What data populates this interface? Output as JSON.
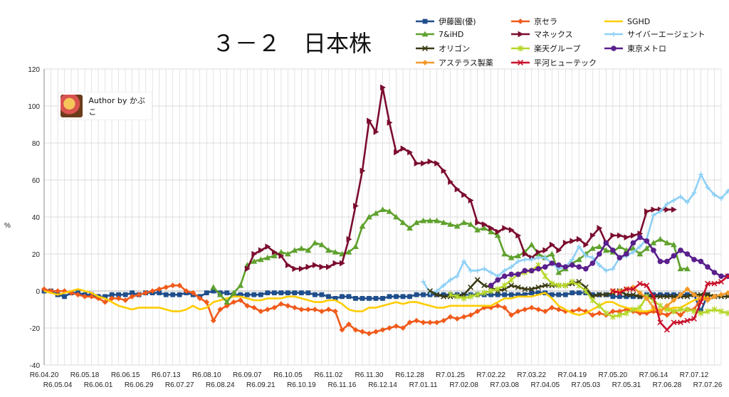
{
  "chart_data": {
    "type": "line",
    "title": "３－２　日本株",
    "ylabel": "%",
    "ylim": [
      -40,
      120
    ],
    "yticks": [
      -40,
      -20,
      0,
      20,
      40,
      60,
      80,
      100,
      120
    ],
    "grid": true,
    "legend_position": "top-right",
    "xticks_top": [
      "R6.04.20",
      "R6.05.18",
      "R6.06.15",
      "R6.07.13",
      "R6.08.10",
      "R6.09.07",
      "R6.10.05",
      "R6.11.02",
      "R6.11.30",
      "R6.12.28",
      "R7.01.25",
      "R7.02.22",
      "R7.03.22",
      "R7.04.19",
      "R7.05.20",
      "R7.06.14",
      "R7.07.12"
    ],
    "xticks_bottom": [
      "R6.05.04",
      "R6.06.01",
      "R6.06.29",
      "R6.07.27",
      "R6.08.24",
      "R6.09.21",
      "R6.10.19",
      "R6.11.16",
      "R6.12.14",
      "R7.01.11",
      "R7.02.08",
      "R7.03.08",
      "R7.04.05",
      "R7.05.03",
      "R7.05.31",
      "R7.06.28",
      "R7.07.26"
    ],
    "series": [
      {
        "name": "伊藤園(優)",
        "color": "#1f4e8c",
        "marker": "square",
        "start": 0,
        "values": [
          0,
          0,
          -2,
          -3,
          -1,
          -1,
          -2,
          -2,
          -3,
          -3,
          -2,
          -2,
          -2,
          -1,
          -2,
          -1,
          -1,
          -1,
          -2,
          -2,
          -2,
          -1,
          -2,
          -3,
          -1,
          0,
          -1,
          -1,
          -2,
          -2,
          -2,
          -2,
          -2,
          -1,
          -1,
          -1,
          -1,
          -1,
          -1,
          -1,
          -2,
          -2,
          -3,
          -4,
          -3,
          -3,
          -4,
          -4,
          -4,
          -4,
          -4,
          -3,
          -3,
          -3,
          -3,
          -2,
          -2,
          -2,
          -2,
          -2,
          -2,
          -2,
          -2,
          -2,
          -2,
          -2,
          -2,
          -2,
          -2,
          -2,
          -2,
          -2,
          -1,
          -1,
          -1,
          -2,
          -2,
          -2,
          -1,
          -1,
          -1,
          -2,
          -2,
          -2,
          -3,
          -3,
          -3,
          -3,
          -3,
          -2,
          -2,
          -2,
          -2,
          -2,
          -2,
          -2,
          -2,
          -11,
          -2
        ]
      },
      {
        "name": "京セラ",
        "color": "#f05a1a",
        "marker": "diamond",
        "start": 0,
        "values": [
          1,
          0,
          0,
          0,
          -1,
          -2,
          -3,
          -3,
          -4,
          -6,
          -4,
          -4,
          -5,
          -3,
          -2,
          -1,
          0,
          1,
          2,
          3,
          3,
          0,
          -1,
          -4,
          -6,
          -16,
          -10,
          -8,
          -6,
          -5,
          -8,
          -9,
          -11,
          -10,
          -9,
          -7,
          -8,
          -9,
          -10,
          -10,
          -10,
          -11,
          -10,
          -11,
          -21,
          -18,
          -21,
          -22,
          -23,
          -22,
          -21,
          -20,
          -19,
          -20,
          -17,
          -16,
          -17,
          -17,
          -17,
          -16,
          -14,
          -15,
          -14,
          -13,
          -11,
          -9,
          -9,
          -8,
          -9,
          -13,
          -11,
          -10,
          -9,
          -10,
          -11,
          -9,
          -10,
          -11,
          -11,
          -10,
          -11,
          -13,
          -12,
          -13,
          -11,
          -11,
          -10,
          -11,
          -12,
          -12,
          -11,
          -12,
          -13,
          -11,
          -13,
          -10,
          -10,
          -4,
          -4
        ]
      },
      {
        "name": "SGHD",
        "color": "#ffcc00",
        "marker": "none",
        "start": 0,
        "values": [
          0,
          -1,
          -2,
          -1,
          0,
          1,
          0,
          -1,
          -3,
          -4,
          -6,
          -8,
          -9,
          -10,
          -9,
          -9,
          -9,
          -9,
          -10,
          -11,
          -11,
          -10,
          -8,
          -10,
          -9,
          -6,
          -5,
          -4,
          -3,
          -3,
          -4,
          -5,
          -5,
          -4,
          -4,
          -4,
          -3,
          -3,
          -4,
          -5,
          -6,
          -6,
          -5,
          -5,
          -7,
          -10,
          -11,
          -11,
          -9,
          -9,
          -8,
          -7,
          -6,
          -7,
          -6,
          -6,
          -7,
          -8,
          -9,
          -9,
          -8,
          -8,
          -8,
          -8,
          -8,
          -8,
          -8,
          -6,
          -4,
          -4,
          -3,
          -3,
          -3,
          -2,
          -1,
          -4,
          -8,
          -10,
          -12,
          -13,
          -12,
          -10,
          -8,
          -6,
          -6,
          -8,
          -9,
          -10,
          -11,
          -11,
          -10,
          -10,
          -10,
          -9,
          -9,
          -7,
          -5,
          -4,
          -3,
          -2
        ]
      },
      {
        "name": "7&iHD",
        "color": "#5fa12e",
        "marker": "triangle",
        "start": 25,
        "values": [
          2,
          -2,
          -6,
          -1,
          3,
          14,
          16,
          17,
          18,
          19,
          21,
          20,
          22,
          23,
          22,
          26,
          25,
          22,
          21,
          20,
          21,
          24,
          35,
          40,
          42,
          44,
          43,
          40,
          37,
          34,
          37,
          38,
          38,
          38,
          37,
          36,
          35,
          37,
          36,
          33,
          34,
          32,
          30,
          20,
          18,
          19,
          21,
          25,
          20,
          18,
          20,
          10,
          12,
          15,
          17,
          20,
          23,
          24,
          22,
          21,
          24,
          22,
          23,
          20,
          23,
          26,
          28,
          26,
          25,
          12,
          12
        ]
      },
      {
        "name": "マネックス",
        "color": "#7b0c2e",
        "marker": "triangle-right",
        "start": 30,
        "values": [
          12,
          20,
          22,
          24,
          21,
          19,
          14,
          12,
          12,
          13,
          14,
          13,
          13,
          15,
          15,
          28,
          46,
          65,
          92,
          86,
          110,
          91,
          75,
          77,
          75,
          69,
          69,
          70,
          69,
          65,
          59,
          55,
          52,
          49,
          37,
          36,
          34,
          32,
          34,
          33,
          30,
          20,
          18,
          21,
          22,
          25,
          22,
          26,
          27,
          28,
          25,
          30,
          34,
          26,
          30,
          30,
          29,
          30,
          31,
          43,
          44,
          44,
          44,
          44
        ]
      },
      {
        "name": "サイバーエージェント",
        "color": "#8fd0f5",
        "marker": "plus",
        "start": 56,
        "values": [
          5,
          -1,
          0,
          3,
          6,
          8,
          16,
          11,
          11,
          12,
          10,
          8,
          11,
          13,
          16,
          17,
          17,
          18,
          18,
          15,
          12,
          13,
          17,
          24,
          19,
          18,
          14,
          11,
          12,
          18,
          19,
          21,
          24,
          28,
          41,
          43,
          47,
          49,
          51,
          48,
          53,
          63,
          56,
          52,
          50,
          54,
          57,
          58,
          57,
          57
        ]
      },
      {
        "name": "オリゴン",
        "color": "#3a3a14",
        "marker": "x",
        "start": 57,
        "values": [
          0,
          -2,
          -3,
          -3,
          -3,
          -2,
          2,
          6,
          3,
          2,
          0,
          1,
          3,
          2,
          1,
          1,
          2,
          3,
          3,
          3,
          3,
          4,
          5,
          2,
          -3,
          -2,
          -2,
          -1,
          0,
          -2,
          -2,
          -3,
          -3,
          -3,
          -3,
          -3,
          -3,
          -3,
          -3,
          -2,
          -2,
          -2,
          -3,
          -3,
          -3,
          -3,
          -3,
          -3,
          -3
        ]
      },
      {
        "name": "楽天グループ",
        "color": "#b6d72a",
        "marker": "asterisk",
        "start": 60,
        "values": [
          -2,
          -3,
          -4,
          -3,
          -2,
          -1,
          0,
          1,
          3,
          6,
          9,
          10,
          11,
          14,
          8,
          4,
          3,
          3,
          5,
          3,
          0,
          -5,
          -8,
          -12,
          -14,
          -13,
          -12,
          -10,
          -9,
          -3,
          -5,
          -8,
          -10,
          -11,
          -10,
          -10,
          -11,
          -12,
          -11,
          -10,
          -11,
          -12,
          -13,
          -12,
          -12,
          -12,
          -12
        ]
      },
      {
        "name": "東京メトロ",
        "color": "#5a1f8c",
        "marker": "circle",
        "start": 66,
        "values": [
          3,
          6,
          8,
          9,
          9,
          11,
          11,
          12,
          13,
          15,
          14,
          13,
          14,
          13,
          12,
          15,
          20,
          26,
          22,
          18,
          20,
          26,
          29,
          27,
          22,
          16,
          16,
          19,
          22,
          20,
          17,
          16,
          13,
          10,
          8,
          8,
          8,
          8,
          7,
          6,
          5,
          4,
          4,
          5,
          7
        ]
      },
      {
        "name": "アステラス製薬",
        "color": "#f39a2a",
        "marker": "diamond",
        "start": 84,
        "values": [
          0,
          0,
          1,
          2,
          -1,
          -4,
          -9,
          -11,
          -8,
          -5,
          -2,
          1,
          -2,
          -4,
          -5,
          -3,
          -2,
          -1,
          0,
          -2,
          -3,
          -1,
          0,
          0,
          -2,
          -3,
          -4,
          -2,
          2,
          4
        ]
      },
      {
        "name": "平河ヒューテック",
        "color": "#c9102a",
        "marker": "x",
        "start": 84,
        "values": [
          0,
          -1,
          1,
          1,
          4,
          3,
          -3,
          -17,
          -21,
          -17,
          -17,
          -16,
          -15,
          -6,
          4,
          4,
          5,
          8,
          10,
          6,
          5,
          2,
          -1,
          -2,
          -1,
          2,
          5,
          10,
          16,
          21
        ]
      }
    ]
  }
}
